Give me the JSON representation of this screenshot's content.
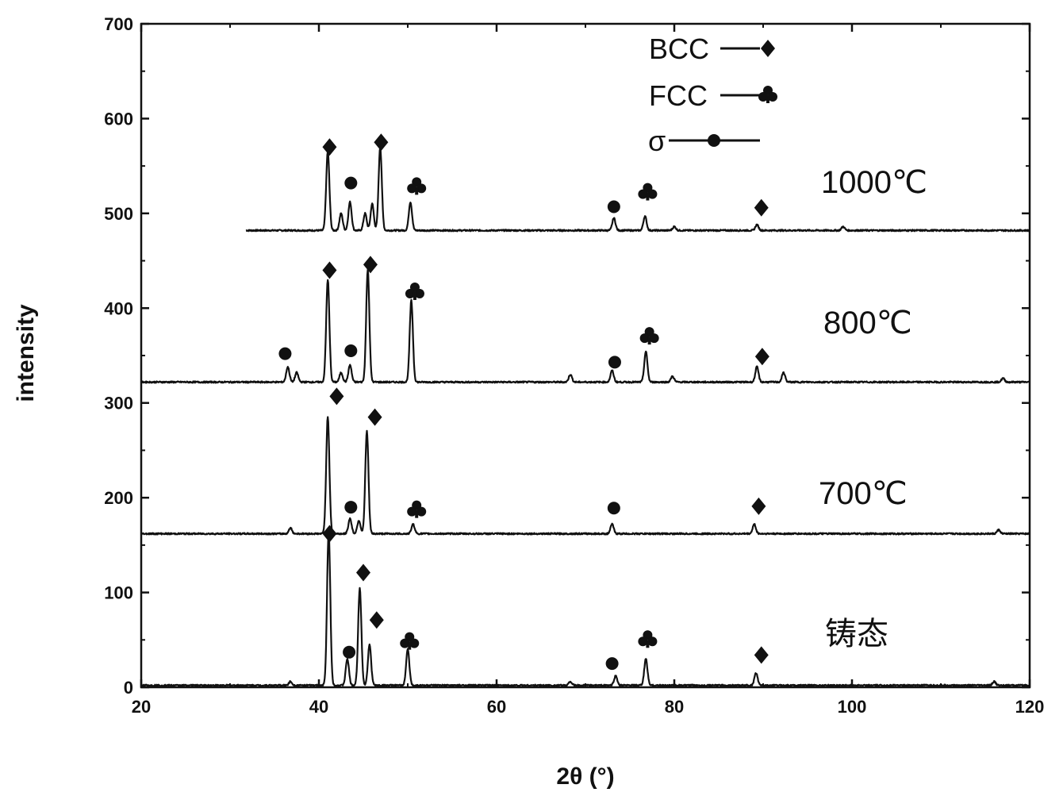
{
  "chart_data": {
    "type": "line",
    "xlabel": "2θ (°)",
    "ylabel": "intensity",
    "xlim": [
      20,
      120
    ],
    "ylim": [
      0,
      700
    ],
    "xticks": [
      20,
      40,
      60,
      80,
      100,
      120
    ],
    "yticks": [
      0,
      100,
      200,
      300,
      400,
      500,
      600,
      700
    ],
    "grid": false,
    "legend": [
      {
        "label": "BCC",
        "marker": "diamond"
      },
      {
        "label": "FCC",
        "marker": "club"
      },
      {
        "label": "σ",
        "marker": "circle"
      }
    ],
    "series": [
      {
        "label": "1000℃",
        "baseline": 482,
        "peaks": [
          {
            "x": 41.0,
            "y": 565,
            "marker": "diamond"
          },
          {
            "x": 42.5,
            "y": 500
          },
          {
            "x": 43.5,
            "y": 512
          },
          {
            "x": 45.2,
            "y": 500
          },
          {
            "x": 46.0,
            "y": 510
          },
          {
            "x": 46.9,
            "y": 570,
            "marker": "diamond"
          },
          {
            "x": 50.3,
            "y": 512
          },
          {
            "x": 73.2,
            "y": 495
          },
          {
            "x": 76.7,
            "y": 497
          },
          {
            "x": 80.0,
            "y": 486
          },
          {
            "x": 89.3,
            "y": 488
          },
          {
            "x": 99.0,
            "y": 486
          }
        ],
        "markers": [
          {
            "x": 41.2,
            "y": 570,
            "type": "diamond"
          },
          {
            "x": 43.6,
            "y": 532,
            "type": "circle"
          },
          {
            "x": 47.0,
            "y": 575,
            "type": "diamond"
          },
          {
            "x": 51.0,
            "y": 528,
            "type": "club"
          },
          {
            "x": 73.2,
            "y": 507,
            "type": "circle"
          },
          {
            "x": 77.0,
            "y": 522,
            "type": "club"
          },
          {
            "x": 89.8,
            "y": 506,
            "type": "diamond"
          }
        ]
      },
      {
        "label": "800℃",
        "baseline": 322,
        "peaks": [
          {
            "x": 36.5,
            "y": 338
          },
          {
            "x": 37.5,
            "y": 332
          },
          {
            "x": 41.0,
            "y": 430,
            "marker": "diamond"
          },
          {
            "x": 42.5,
            "y": 332
          },
          {
            "x": 43.5,
            "y": 340
          },
          {
            "x": 45.5,
            "y": 440,
            "marker": "diamond"
          },
          {
            "x": 50.4,
            "y": 408
          },
          {
            "x": 68.3,
            "y": 330
          },
          {
            "x": 73.0,
            "y": 334
          },
          {
            "x": 76.8,
            "y": 354
          },
          {
            "x": 79.8,
            "y": 328
          },
          {
            "x": 89.3,
            "y": 338
          },
          {
            "x": 92.3,
            "y": 332
          },
          {
            "x": 117.0,
            "y": 326
          }
        ],
        "markers": [
          {
            "x": 36.2,
            "y": 352,
            "type": "circle"
          },
          {
            "x": 41.2,
            "y": 440,
            "type": "diamond"
          },
          {
            "x": 43.6,
            "y": 355,
            "type": "circle"
          },
          {
            "x": 45.8,
            "y": 446,
            "type": "diamond"
          },
          {
            "x": 50.8,
            "y": 417,
            "type": "club"
          },
          {
            "x": 73.3,
            "y": 343,
            "type": "circle"
          },
          {
            "x": 77.2,
            "y": 370,
            "type": "club"
          },
          {
            "x": 89.9,
            "y": 349,
            "type": "diamond"
          }
        ]
      },
      {
        "label": "700℃",
        "baseline": 162,
        "peaks": [
          {
            "x": 36.8,
            "y": 168
          },
          {
            "x": 41.0,
            "y": 285,
            "marker": "diamond"
          },
          {
            "x": 43.5,
            "y": 178
          },
          {
            "x": 44.5,
            "y": 176
          },
          {
            "x": 45.4,
            "y": 270,
            "marker": "diamond"
          },
          {
            "x": 50.6,
            "y": 172
          },
          {
            "x": 73.0,
            "y": 172
          },
          {
            "x": 89.0,
            "y": 172
          },
          {
            "x": 116.5,
            "y": 166
          }
        ],
        "markers": [
          {
            "x": 42.0,
            "y": 307,
            "type": "diamond"
          },
          {
            "x": 43.6,
            "y": 190,
            "type": "circle"
          },
          {
            "x": 46.3,
            "y": 285,
            "type": "diamond"
          },
          {
            "x": 51.0,
            "y": 187,
            "type": "club"
          },
          {
            "x": 73.2,
            "y": 189,
            "type": "circle"
          },
          {
            "x": 89.5,
            "y": 191,
            "type": "diamond"
          }
        ]
      },
      {
        "label": "铸态",
        "baseline": 2,
        "peaks": [
          {
            "x": 36.8,
            "y": 6
          },
          {
            "x": 41.1,
            "y": 165,
            "marker": "diamond"
          },
          {
            "x": 43.2,
            "y": 30
          },
          {
            "x": 44.6,
            "y": 105,
            "marker": "diamond"
          },
          {
            "x": 45.7,
            "y": 45,
            "marker": "diamond"
          },
          {
            "x": 50.0,
            "y": 40
          },
          {
            "x": 68.3,
            "y": 6
          },
          {
            "x": 73.4,
            "y": 12
          },
          {
            "x": 76.8,
            "y": 30
          },
          {
            "x": 89.2,
            "y": 15
          },
          {
            "x": 116.0,
            "y": 6
          }
        ],
        "markers": [
          {
            "x": 41.2,
            "y": 162,
            "type": "diamond"
          },
          {
            "x": 43.4,
            "y": 37,
            "type": "circle"
          },
          {
            "x": 45.0,
            "y": 121,
            "type": "diamond"
          },
          {
            "x": 46.5,
            "y": 71,
            "type": "diamond"
          },
          {
            "x": 50.2,
            "y": 48,
            "type": "club"
          },
          {
            "x": 73.0,
            "y": 25,
            "type": "circle"
          },
          {
            "x": 77.0,
            "y": 50,
            "type": "club"
          },
          {
            "x": 89.8,
            "y": 34,
            "type": "diamond"
          }
        ]
      }
    ]
  }
}
